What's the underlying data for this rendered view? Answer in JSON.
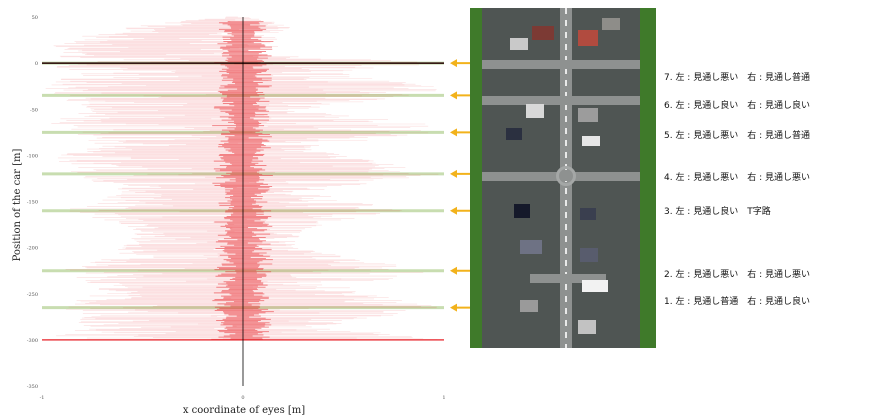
{
  "chart_data": {
    "type": "scatter",
    "xlabel": "x coordinate of eyes [m]",
    "ylabel": "Position of the car [m]",
    "xlim": [
      -1,
      1
    ],
    "ylim": [
      -350,
      50
    ],
    "x_ticks": [
      "-1",
      "0",
      "1"
    ],
    "y_ticks": [
      "50",
      "0",
      "-50",
      "-100",
      "-150",
      "-200",
      "-250",
      "-300",
      "-350"
    ],
    "intersection_lines_y": [
      0,
      -35,
      -75,
      -120,
      -160,
      -225,
      -265
    ],
    "distribution_envelope": [
      {
        "y": 50,
        "left": -0.1,
        "right": 0.02
      },
      {
        "y": 45,
        "left": -0.35,
        "right": 0.2
      },
      {
        "y": 40,
        "left": -0.55,
        "right": 0.25
      },
      {
        "y": 30,
        "left": -0.8,
        "right": 0.15
      },
      {
        "y": 20,
        "left": -0.95,
        "right": 0.2
      },
      {
        "y": 10,
        "left": -0.9,
        "right": 0.12
      },
      {
        "y": 0,
        "left": -1.0,
        "right": 1.0
      },
      {
        "y": -10,
        "left": -0.85,
        "right": 0.45
      },
      {
        "y": -25,
        "left": -1.0,
        "right": 0.95
      },
      {
        "y": -35,
        "left": -0.95,
        "right": 1.0
      },
      {
        "y": -50,
        "left": -0.75,
        "right": 0.3
      },
      {
        "y": -65,
        "left": -1.0,
        "right": 0.9
      },
      {
        "y": -75,
        "left": -0.9,
        "right": 1.0
      },
      {
        "y": -90,
        "left": -0.7,
        "right": 0.35
      },
      {
        "y": -100,
        "left": -0.95,
        "right": 0.5
      },
      {
        "y": -120,
        "left": -0.85,
        "right": 1.0
      },
      {
        "y": -140,
        "left": -0.6,
        "right": 0.35
      },
      {
        "y": -160,
        "left": -0.9,
        "right": 0.8
      },
      {
        "y": -180,
        "left": -0.55,
        "right": 0.3
      },
      {
        "y": -200,
        "left": -0.6,
        "right": 0.25
      },
      {
        "y": -225,
        "left": -0.9,
        "right": 0.95
      },
      {
        "y": -245,
        "left": -0.75,
        "right": 0.5
      },
      {
        "y": -265,
        "left": -0.9,
        "right": 1.0
      },
      {
        "y": -285,
        "left": -0.8,
        "right": 0.4
      },
      {
        "y": -300,
        "left": -1.0,
        "right": 1.0
      }
    ],
    "series_color": "#e8232a",
    "line_color": "#c8ddb0"
  },
  "intersections": [
    {
      "label": "7. 左 : 見通し悪い　右 : 見通し普通",
      "y": 0
    },
    {
      "label": "6. 左 : 見通し良い　右 : 見通し良い",
      "y": -35
    },
    {
      "label": "5. 左 : 見通し悪い　右 : 見通し普通",
      "y": -75
    },
    {
      "label": "4. 左 : 見通し悪い　右 : 見通し悪い",
      "y": -120
    },
    {
      "label": "3. 左 : 見通し良い　T字路",
      "y": -160
    },
    {
      "label": "2. 左 : 見通し悪い　右 : 見通し悪い",
      "y": -225
    },
    {
      "label": "1. 左 : 見通し普通　右 : 見通し良い",
      "y": -265
    }
  ],
  "colors": {
    "arrow": "#f2b21b",
    "axis": "#000000",
    "grass": "#3f7a2a",
    "road": "#8e9190"
  }
}
